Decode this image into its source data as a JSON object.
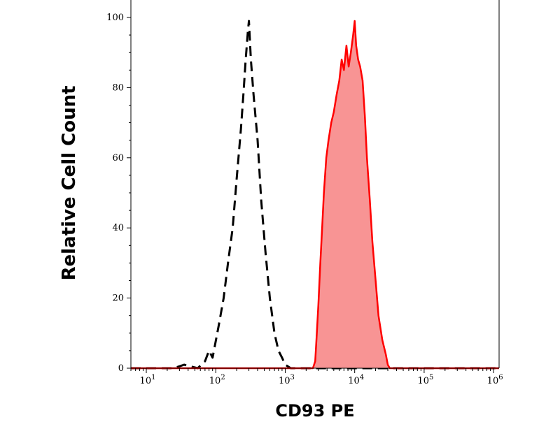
{
  "chart_data": {
    "type": "area",
    "xlabel": "CD93 PE",
    "ylabel": "Relative Cell Count",
    "x_scale": "log",
    "xlim": [
      6,
      1200000
    ],
    "ylim": [
      0,
      100
    ],
    "x_ticks": [
      {
        "value": 10,
        "base": "10",
        "exp": "1"
      },
      {
        "value": 100,
        "base": "10",
        "exp": "2"
      },
      {
        "value": 1000,
        "base": "10",
        "exp": "3"
      },
      {
        "value": 10000,
        "base": "10",
        "exp": "4"
      },
      {
        "value": 100000,
        "base": "10",
        "exp": "5"
      },
      {
        "value": 1000000,
        "base": "10",
        "exp": "6"
      }
    ],
    "y_ticks": [
      {
        "value": 0,
        "label": "0"
      },
      {
        "value": 20,
        "label": "20"
      },
      {
        "value": 40,
        "label": "40"
      },
      {
        "value": 60,
        "label": "60"
      },
      {
        "value": 80,
        "label": "80"
      },
      {
        "value": 100,
        "label": "100"
      }
    ],
    "grid": false,
    "series": [
      {
        "style": "dashed",
        "color": "#000000",
        "fill": "none",
        "points": [
          [
            6,
            0
          ],
          [
            25,
            0
          ],
          [
            35,
            1
          ],
          [
            55,
            0
          ],
          [
            70,
            2
          ],
          [
            80,
            5
          ],
          [
            90,
            3
          ],
          [
            110,
            12
          ],
          [
            130,
            20
          ],
          [
            150,
            30
          ],
          [
            175,
            40
          ],
          [
            200,
            54
          ],
          [
            230,
            68
          ],
          [
            250,
            78
          ],
          [
            270,
            88
          ],
          [
            290,
            96
          ],
          [
            300,
            99
          ],
          [
            320,
            88
          ],
          [
            350,
            78
          ],
          [
            400,
            65
          ],
          [
            450,
            48
          ],
          [
            520,
            33
          ],
          [
            600,
            20
          ],
          [
            700,
            10
          ],
          [
            800,
            5
          ],
          [
            900,
            3
          ],
          [
            1000,
            1
          ],
          [
            1200,
            0
          ],
          [
            1200000,
            0
          ]
        ]
      },
      {
        "style": "solid",
        "color": "#ff0000",
        "fill": "#f89494",
        "points": [
          [
            6,
            0
          ],
          [
            2500,
            0
          ],
          [
            2700,
            2
          ],
          [
            2850,
            10
          ],
          [
            3000,
            18
          ],
          [
            3200,
            30
          ],
          [
            3400,
            40
          ],
          [
            3600,
            50
          ],
          [
            3900,
            60
          ],
          [
            4200,
            65
          ],
          [
            4600,
            70
          ],
          [
            5000,
            73
          ],
          [
            5500,
            78
          ],
          [
            6000,
            82
          ],
          [
            6500,
            88
          ],
          [
            7000,
            85
          ],
          [
            7600,
            92
          ],
          [
            8200,
            86
          ],
          [
            8800,
            90
          ],
          [
            9500,
            95
          ],
          [
            10000,
            99
          ],
          [
            10500,
            92
          ],
          [
            11200,
            88
          ],
          [
            12000,
            86
          ],
          [
            13000,
            82
          ],
          [
            14000,
            72
          ],
          [
            15000,
            60
          ],
          [
            16500,
            48
          ],
          [
            18000,
            36
          ],
          [
            20000,
            25
          ],
          [
            22000,
            15
          ],
          [
            25000,
            8
          ],
          [
            28000,
            4
          ],
          [
            30000,
            1
          ],
          [
            32000,
            0
          ],
          [
            1200000,
            0
          ]
        ]
      }
    ]
  }
}
